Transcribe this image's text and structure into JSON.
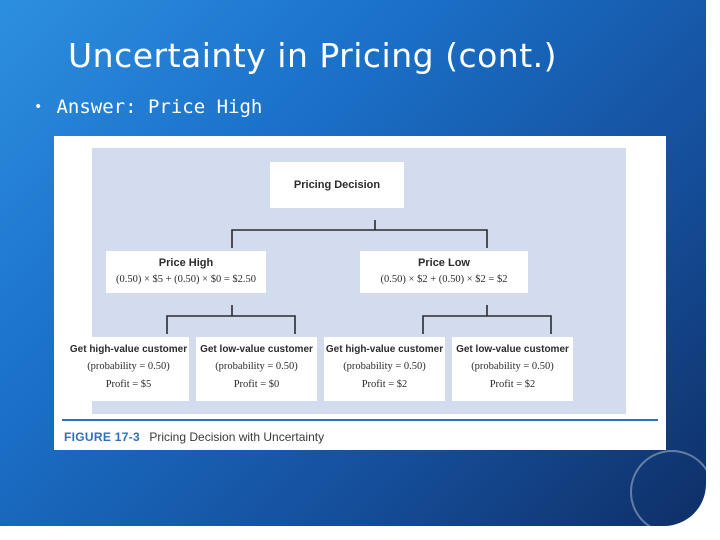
{
  "slide": {
    "title": "Uncertainty in Pricing (cont.)",
    "bullet": "Answer: Price High"
  },
  "figure": {
    "root": "Pricing Decision",
    "branches": [
      {
        "label": "Price High",
        "formula": "(0.50) × $5 + (0.50) × $0 = $2.50",
        "outcomes": [
          {
            "label": "Get high-value customer",
            "probability": "(probability = 0.50)",
            "profit": "Profit = $5"
          },
          {
            "label": "Get low-value customer",
            "probability": "(probability = 0.50)",
            "profit": "Profit = $0"
          }
        ]
      },
      {
        "label": "Price Low",
        "formula": "(0.50) × $2 + (0.50) × $2 = $2",
        "outcomes": [
          {
            "label": "Get high-value customer",
            "probability": "(probability = 0.50)",
            "profit": "Profit = $2"
          },
          {
            "label": "Get low-value customer",
            "probability": "(probability = 0.50)",
            "profit": "Profit = $2"
          }
        ]
      }
    ],
    "caption_number": "FIGURE 17-3",
    "caption_text": "Pricing Decision with Uncertainty"
  },
  "colors": {
    "background_top": "#2d8fe0",
    "background_bottom": "#0f2f66",
    "diagram_panel": "#d3dcef",
    "caption_accent": "#2f6fc0"
  }
}
